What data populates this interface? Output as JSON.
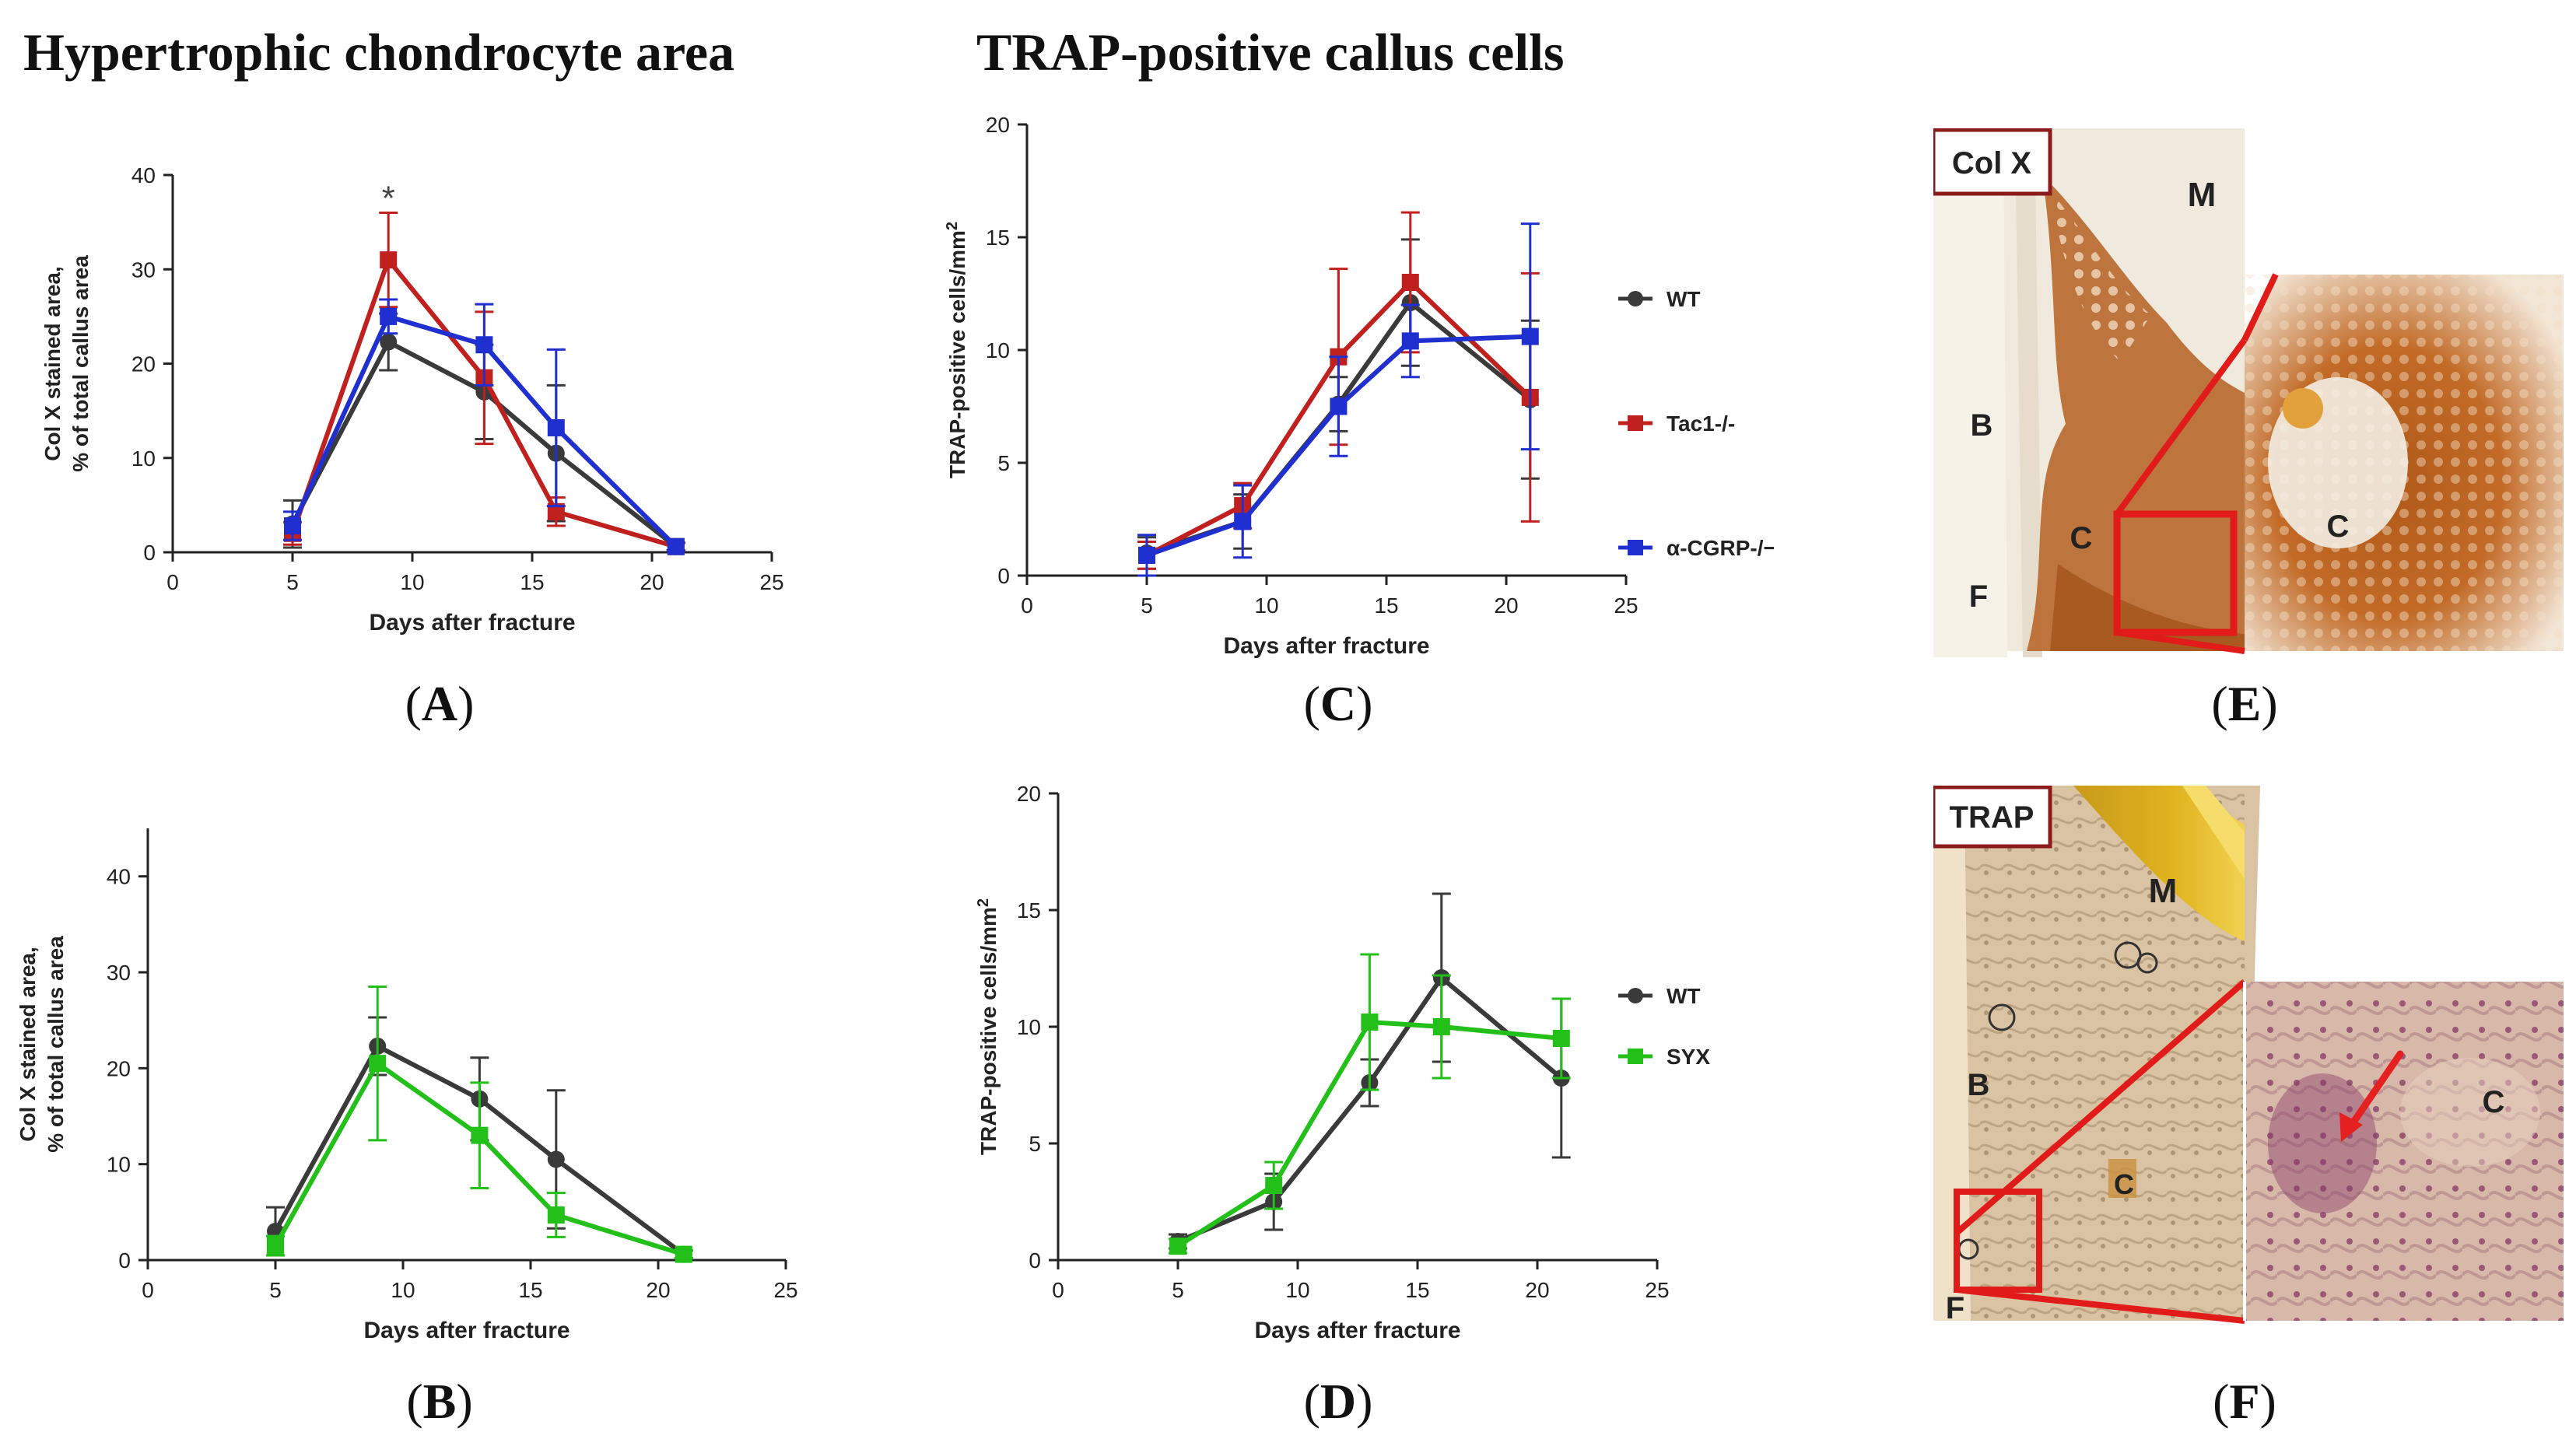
{
  "titles": {
    "left": "Hypertrophic chondrocyte area",
    "middle": "TRAP-positive callus cells"
  },
  "panel_labels": {
    "A": "A",
    "B": "B",
    "C": "C",
    "D": "D",
    "E": "E",
    "F": "F"
  },
  "colors": {
    "WT": "#3a3a3a",
    "Tac1": "#c0201e",
    "CGRP": "#1f2fd0",
    "SYX": "#22c019"
  },
  "chart_data": [
    {
      "id": "A",
      "type": "line",
      "xlabel": "Days after fracture",
      "ylabel_lines": [
        "Col X stained area,",
        "% of total callus area"
      ],
      "xlim": [
        0,
        25
      ],
      "ylim": [
        0,
        40
      ],
      "xticks": [
        0,
        5,
        10,
        15,
        20,
        25
      ],
      "yticks": [
        0,
        10,
        20,
        30,
        40
      ],
      "annotation": {
        "text": "*",
        "x": 9,
        "y": 37.5
      },
      "series": [
        {
          "name": "WT",
          "colorKey": "WT",
          "marker": "circle",
          "x": [
            5,
            9,
            13,
            16,
            21
          ],
          "y": [
            3,
            22.3,
            17,
            10.5,
            0.6
          ],
          "err": [
            2.5,
            3,
            5,
            7.2,
            0.4
          ]
        },
        {
          "name": "Tac1-/-",
          "colorKey": "Tac1",
          "marker": "square",
          "x": [
            5,
            9,
            13,
            16,
            21
          ],
          "y": [
            2,
            31,
            18.5,
            4.3,
            0.6
          ],
          "err": [
            1.2,
            5,
            7,
            1.5,
            0.4
          ]
        },
        {
          "name": "α-CGRP-/−",
          "colorKey": "CGRP",
          "marker": "square",
          "x": [
            5,
            9,
            13,
            16,
            21
          ],
          "y": [
            2.8,
            25,
            22,
            13.2,
            0.6
          ],
          "err": [
            1.5,
            1.8,
            4.3,
            8.3,
            0.4
          ]
        }
      ]
    },
    {
      "id": "B",
      "type": "line",
      "xlabel": "Days after fracture",
      "ylabel_lines": [
        "Col X stained area,",
        "% of total callus area"
      ],
      "xlim": [
        0,
        25
      ],
      "ylim": [
        0,
        45
      ],
      "xticks": [
        0,
        5,
        10,
        15,
        20,
        25
      ],
      "yticks": [
        0,
        10,
        20,
        30,
        40
      ],
      "series": [
        {
          "name": "WT",
          "colorKey": "WT",
          "marker": "circle",
          "x": [
            5,
            9,
            13,
            16,
            21
          ],
          "y": [
            3,
            22.3,
            16.8,
            10.5,
            0.6
          ],
          "err": [
            2.5,
            3,
            4.3,
            7.2,
            0.4
          ]
        },
        {
          "name": "SYX",
          "colorKey": "SYX",
          "marker": "square",
          "x": [
            5,
            9,
            13,
            16,
            21
          ],
          "y": [
            1.5,
            20.5,
            13,
            4.7,
            0.6
          ],
          "err": [
            1,
            8,
            5.5,
            2.3,
            0.4
          ]
        }
      ]
    },
    {
      "id": "C",
      "type": "line",
      "xlabel": "Days after fracture",
      "ylabel": "TRAP-positive cells/mm",
      "ylabel_sup": "2",
      "xlim": [
        0,
        25
      ],
      "ylim": [
        0,
        20
      ],
      "xticks": [
        0,
        5,
        10,
        15,
        20,
        25
      ],
      "yticks": [
        0,
        5,
        10,
        15,
        20
      ],
      "legend_position": "right",
      "series": [
        {
          "name": "WT",
          "colorKey": "WT",
          "marker": "circle",
          "x": [
            5,
            9,
            13,
            16,
            21
          ],
          "y": [
            1,
            2.4,
            7.6,
            12.1,
            7.8
          ],
          "err": [
            0.7,
            1.2,
            1.2,
            2.8,
            3.5
          ]
        },
        {
          "name": "Tac1-/-",
          "colorKey": "Tac1",
          "marker": "square",
          "x": [
            5,
            9,
            13,
            16,
            21
          ],
          "y": [
            0.9,
            3.1,
            9.7,
            13,
            7.9
          ],
          "err": [
            0.6,
            1,
            3.9,
            3.1,
            5.5
          ]
        },
        {
          "name": "α-CGRP-/−",
          "colorKey": "CGRP",
          "marker": "square",
          "x": [
            5,
            9,
            13,
            16,
            21
          ],
          "y": [
            0.9,
            2.4,
            7.5,
            10.4,
            10.6
          ],
          "err": [
            0.9,
            1.6,
            2.2,
            1.6,
            5
          ]
        }
      ]
    },
    {
      "id": "D",
      "type": "line",
      "xlabel": "Days after fracture",
      "ylabel": "TRAP-positive cells/mm",
      "ylabel_sup": "2",
      "xlim": [
        0,
        25
      ],
      "ylim": [
        0,
        20
      ],
      "xticks": [
        0,
        5,
        10,
        15,
        20,
        25
      ],
      "yticks": [
        0,
        5,
        10,
        15,
        20
      ],
      "legend_position": "right",
      "series": [
        {
          "name": "WT",
          "colorKey": "WT",
          "marker": "circle",
          "x": [
            5,
            9,
            13,
            16,
            21
          ],
          "y": [
            0.8,
            2.5,
            7.6,
            12.1,
            7.8
          ],
          "err": [
            0.3,
            1.2,
            1,
            3.6,
            3.4
          ]
        },
        {
          "name": "SYX",
          "colorKey": "SYX",
          "marker": "square",
          "x": [
            5,
            9,
            13,
            16,
            21
          ],
          "y": [
            0.6,
            3.2,
            10.2,
            10,
            9.5
          ],
          "err": [
            0.3,
            1,
            2.9,
            2.2,
            1.7
          ]
        }
      ]
    }
  ],
  "photos": {
    "E": {
      "stain_label": "Col X",
      "letters": [
        "M",
        "B",
        "C",
        "C",
        "F"
      ]
    },
    "F": {
      "stain_label": "TRAP",
      "letters": [
        "M",
        "B",
        "C",
        "F",
        "C"
      ]
    }
  }
}
